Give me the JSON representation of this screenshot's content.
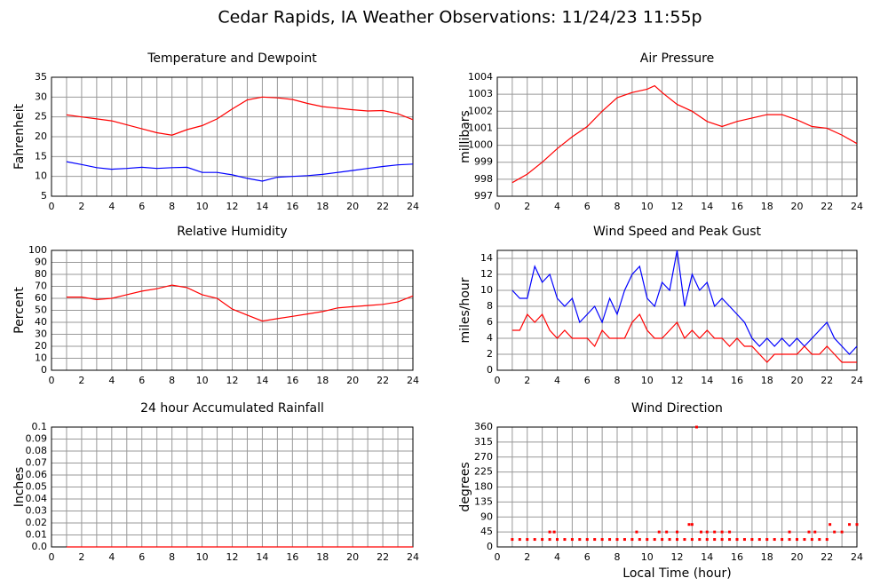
{
  "title": "Cedar Rapids, IA Weather Observations: 11/24/23 11:55p",
  "chart_data": [
    {
      "type": "line",
      "title": "Temperature and Dewpoint",
      "y_label": "Fahrenheit",
      "x": [
        1,
        2,
        3,
        4,
        5,
        6,
        7,
        8,
        9,
        10,
        11,
        12,
        13,
        14,
        15,
        16,
        17,
        18,
        19,
        20,
        21,
        22,
        23,
        24
      ],
      "series": [
        {
          "name": "Temperature",
          "color": "#ff0000",
          "values": [
            25.5,
            25,
            24.5,
            24,
            23,
            22,
            21,
            20.4,
            21.8,
            22.8,
            24.5,
            27,
            29.3,
            30,
            29.8,
            29.4,
            28.4,
            27.6,
            27.2,
            26.8,
            26.5,
            26.6,
            25.8,
            24.3
          ]
        },
        {
          "name": "Dewpoint",
          "color": "#0000ff",
          "values": [
            13.7,
            13,
            12.2,
            11.8,
            12,
            12.3,
            12,
            12.2,
            12.3,
            11,
            11,
            10.4,
            9.5,
            8.8,
            9.8,
            10,
            10.2,
            10.5,
            11,
            11.5,
            12,
            12.5,
            12.9,
            13.1
          ]
        }
      ],
      "xlim": [
        0,
        24
      ],
      "xticks": [
        0,
        2,
        4,
        6,
        8,
        10,
        12,
        14,
        16,
        18,
        20,
        22,
        24
      ],
      "ylim": [
        5,
        35
      ],
      "yticks": [
        5,
        10,
        15,
        20,
        25,
        30,
        35
      ],
      "grid": true
    },
    {
      "type": "line",
      "title": "Air Pressure",
      "y_label": "millibars",
      "x": [
        1,
        2,
        3,
        4,
        5,
        6,
        7,
        8,
        9,
        10,
        10.5,
        11,
        12,
        13,
        14,
        15,
        16,
        17,
        18,
        19,
        20,
        21,
        22,
        23,
        24
      ],
      "series": [
        {
          "name": "Pressure",
          "color": "#ff0000",
          "values": [
            997.8,
            998.3,
            999,
            999.8,
            1000.5,
            1001.1,
            1002,
            1002.8,
            1003.1,
            1003.3,
            1003.5,
            1003.1,
            1002.4,
            1002,
            1001.4,
            1001.1,
            1001.4,
            1001.6,
            1001.8,
            1001.8,
            1001.5,
            1001.1,
            1001,
            1000.6,
            1000.1
          ]
        }
      ],
      "xlim": [
        0,
        24
      ],
      "xticks": [
        0,
        2,
        4,
        6,
        8,
        10,
        12,
        14,
        16,
        18,
        20,
        22,
        24
      ],
      "ylim": [
        997,
        1004
      ],
      "yticks": [
        997,
        998,
        999,
        1000,
        1001,
        1002,
        1003,
        1004
      ],
      "grid": true
    },
    {
      "type": "line",
      "title": "Relative Humidity",
      "y_label": "Percent",
      "x": [
        1,
        2,
        3,
        4,
        5,
        6,
        7,
        8,
        9,
        10,
        11,
        12,
        13,
        14,
        15,
        16,
        17,
        18,
        19,
        20,
        21,
        22,
        23,
        24
      ],
      "series": [
        {
          "name": "Relative Humidity",
          "color": "#ff0000",
          "values": [
            61,
            61,
            59,
            60,
            63,
            66,
            68,
            71,
            69,
            63,
            60,
            51,
            46,
            41,
            43,
            45,
            47,
            49,
            52,
            53,
            54,
            55,
            57,
            62
          ]
        }
      ],
      "xlim": [
        0,
        24
      ],
      "xticks": [
        0,
        2,
        4,
        6,
        8,
        10,
        12,
        14,
        16,
        18,
        20,
        22,
        24
      ],
      "ylim": [
        0,
        100
      ],
      "yticks": [
        0,
        10,
        20,
        30,
        40,
        50,
        60,
        70,
        80,
        90,
        100
      ],
      "grid": true
    },
    {
      "type": "line",
      "title": "Wind Speed and Peak Gust",
      "y_label": "miles/hour",
      "x": [
        1,
        1.5,
        2,
        2.5,
        3,
        3.5,
        4,
        4.5,
        5,
        5.5,
        6,
        6.5,
        7,
        7.5,
        8,
        8.5,
        9,
        9.5,
        10,
        10.5,
        11,
        11.5,
        12,
        12.5,
        13,
        13.5,
        14,
        14.5,
        15,
        15.5,
        16,
        16.5,
        17,
        17.5,
        18,
        18.5,
        19,
        19.5,
        20,
        20.5,
        21,
        21.5,
        22,
        22.5,
        23,
        23.5,
        24
      ],
      "series": [
        {
          "name": "Peak Gust",
          "color": "#0000ff",
          "values": [
            10,
            9,
            9,
            13,
            11,
            12,
            9,
            8,
            9,
            6,
            7,
            8,
            6,
            9,
            7,
            10,
            12,
            13,
            9,
            8,
            11,
            10,
            15,
            8,
            12,
            10,
            11,
            8,
            9,
            8,
            7,
            6,
            4,
            3,
            4,
            3,
            4,
            3,
            4,
            3,
            4,
            5,
            6,
            4,
            3,
            2,
            3
          ]
        },
        {
          "name": "Wind Speed",
          "color": "#ff0000",
          "values": [
            5,
            5,
            7,
            6,
            7,
            5,
            4,
            5,
            4,
            4,
            4,
            3,
            5,
            4,
            4,
            4,
            6,
            7,
            5,
            4,
            4,
            5,
            6,
            4,
            5,
            4,
            5,
            4,
            4,
            3,
            4,
            3,
            3,
            2,
            1,
            2,
            2,
            2,
            2,
            3,
            2,
            2,
            3,
            2,
            1,
            1,
            1
          ]
        }
      ],
      "xlim": [
        0,
        24
      ],
      "xticks": [
        0,
        2,
        4,
        6,
        8,
        10,
        12,
        14,
        16,
        18,
        20,
        22,
        24
      ],
      "ylim": [
        0,
        15
      ],
      "yticks": [
        0,
        2,
        4,
        6,
        8,
        10,
        12,
        14
      ],
      "grid": true
    },
    {
      "type": "line",
      "title": "24 hour Accumulated Rainfall",
      "y_label": "Inches",
      "x": [
        1,
        24
      ],
      "series": [
        {
          "name": "Rainfall",
          "color": "#ff0000",
          "values": [
            0,
            0
          ]
        }
      ],
      "xlim": [
        0,
        24
      ],
      "xticks": [
        0,
        2,
        4,
        6,
        8,
        10,
        12,
        14,
        16,
        18,
        20,
        22,
        24
      ],
      "ylim": [
        0,
        0.1
      ],
      "yticks": [
        {
          "value": 0,
          "label": "0.0"
        },
        0.01,
        0.02,
        0.03,
        0.04,
        0.05,
        0.06,
        0.07,
        0.08,
        0.09,
        0.1
      ],
      "grid": true
    },
    {
      "type": "scatter",
      "title": "Wind Direction",
      "y_label": "degrees",
      "x_label": "Local Time (hour)",
      "x": [
        1,
        1.5,
        2,
        2.5,
        3,
        3.5,
        4,
        4.5,
        5,
        5.5,
        6,
        6.5,
        7,
        7.5,
        8,
        8.5,
        9,
        9.5,
        10,
        10.5,
        11,
        11.5,
        12,
        12.5,
        13,
        13.5,
        14,
        14.5,
        15,
        15.5,
        16,
        16.5,
        17,
        17.5,
        18,
        18.5,
        19,
        19.5,
        20,
        20.5,
        21,
        21.5,
        22,
        22.5,
        23,
        23.5,
        24,
        3.5,
        3.8,
        9.3,
        10.8,
        11.3,
        12,
        12.8,
        13,
        13.3,
        13.6,
        14,
        14.5,
        15,
        15.5,
        19.5,
        20.8,
        21.2,
        22.2
      ],
      "series": [
        {
          "name": "Wind Direction",
          "color": "#ff0000",
          "values": [
            22.5,
            22.5,
            22.5,
            22.5,
            22.5,
            22.5,
            22.5,
            22.5,
            22.5,
            22.5,
            22.5,
            22.5,
            22.5,
            22.5,
            22.5,
            22.5,
            22.5,
            22.5,
            22.5,
            22.5,
            22.5,
            22.5,
            22.5,
            22.5,
            22.5,
            22.5,
            22.5,
            22.5,
            22.5,
            22.5,
            22.5,
            22.5,
            22.5,
            22.5,
            22.5,
            22.5,
            22.5,
            22.5,
            22.5,
            22.5,
            22.5,
            22.5,
            22.5,
            45,
            45,
            67.5,
            67.5,
            45,
            45,
            45,
            45,
            45,
            45,
            67.5,
            67.5,
            360,
            45,
            45,
            45,
            45,
            45,
            45,
            45,
            45,
            67.5
          ]
        }
      ],
      "xlim": [
        0,
        24
      ],
      "xticks": [
        0,
        2,
        4,
        6,
        8,
        10,
        12,
        14,
        16,
        18,
        20,
        22,
        24
      ],
      "ylim": [
        0,
        360
      ],
      "yticks": [
        0,
        45,
        90,
        135,
        180,
        225,
        270,
        315,
        360
      ],
      "grid": true
    }
  ]
}
